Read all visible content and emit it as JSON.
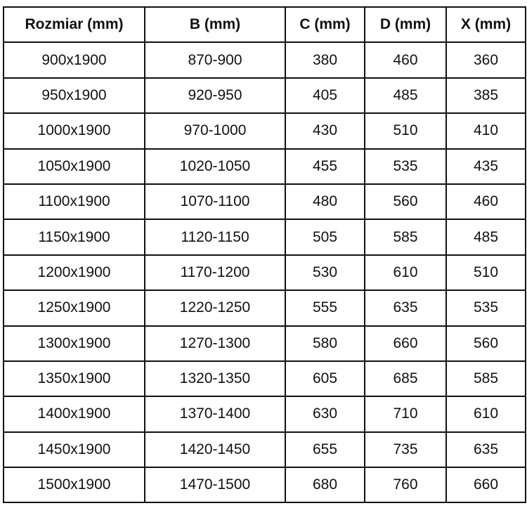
{
  "table": {
    "headers": [
      "Rozmiar (mm)",
      "B (mm)",
      "C (mm)",
      "D (mm)",
      "X (mm)"
    ],
    "rows": [
      [
        "900x1900",
        "870-900",
        "380",
        "460",
        "360"
      ],
      [
        "950x1900",
        "920-950",
        "405",
        "485",
        "385"
      ],
      [
        "1000x1900",
        "970-1000",
        "430",
        "510",
        "410"
      ],
      [
        "1050x1900",
        "1020-1050",
        "455",
        "535",
        "435"
      ],
      [
        "1100x1900",
        "1070-1100",
        "480",
        "560",
        "460"
      ],
      [
        "1150x1900",
        "1120-1150",
        "505",
        "585",
        "485"
      ],
      [
        "1200x1900",
        "1170-1200",
        "530",
        "610",
        "510"
      ],
      [
        "1250x1900",
        "1220-1250",
        "555",
        "635",
        "535"
      ],
      [
        "1300x1900",
        "1270-1300",
        "580",
        "660",
        "560"
      ],
      [
        "1350x1900",
        "1320-1350",
        "605",
        "685",
        "585"
      ],
      [
        "1400x1900",
        "1370-1400",
        "630",
        "710",
        "610"
      ],
      [
        "1450x1900",
        "1420-1450",
        "655",
        "735",
        "635"
      ],
      [
        "1500x1900",
        "1470-1500",
        "680",
        "760",
        "660"
      ]
    ]
  }
}
